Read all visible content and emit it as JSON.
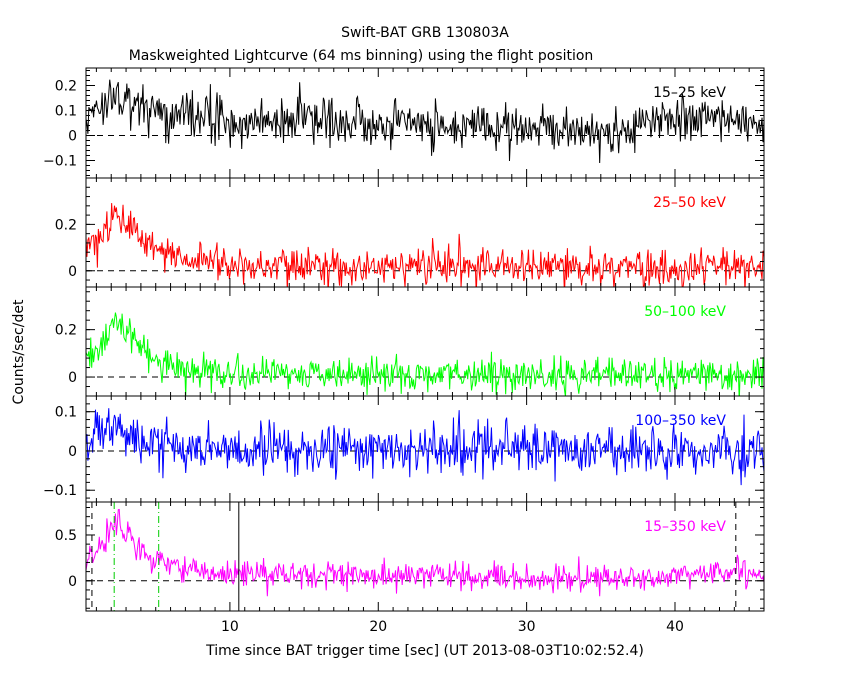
{
  "chart_data": {
    "type": "line",
    "title": "Swift-BAT GRB 130803A",
    "subtitle": "Maskweighted Lightcurve (64 ms binning) using the flight position",
    "xlabel": "Time since BAT trigger time [sec] (UT 2013-08-03T10:02:52.4)",
    "ylabel": "Counts/sec/det",
    "xlim": [
      0.3,
      46
    ],
    "xticks": [
      10,
      20,
      30,
      40
    ],
    "xtick_labels": [
      "10",
      "20",
      "30",
      "40"
    ],
    "bin_width_s": 0.064,
    "panels": [
      {
        "name": "15-25 keV",
        "label": "15–25 keV",
        "color": "#000000",
        "ylim": [
          -0.17,
          0.27
        ],
        "yticks": [
          -0.1,
          0,
          0.1,
          0.2
        ],
        "ytick_labels": [
          "−0.1",
          "0",
          "0.1",
          "0.2"
        ],
        "noise": 0.045,
        "baseline": 0.02,
        "envelope": [
          [
            0.3,
            0.06
          ],
          [
            1.5,
            0.12
          ],
          [
            2.8,
            0.13
          ],
          [
            5,
            0.07
          ],
          [
            10,
            0.04
          ],
          [
            20,
            0.03
          ],
          [
            30,
            0.01
          ],
          [
            36,
            0.0
          ],
          [
            41,
            0.05
          ],
          [
            42.5,
            0.06
          ],
          [
            46,
            0.03
          ]
        ]
      },
      {
        "name": "25-50 keV",
        "label": "25–50 keV",
        "color": "#ff0000",
        "ylim": [
          -0.07,
          0.4
        ],
        "yticks": [
          0,
          0.2
        ],
        "ytick_labels": [
          "0",
          "0.2"
        ],
        "noise": 0.04,
        "baseline": 0.0,
        "envelope": [
          [
            0.3,
            0.08
          ],
          [
            1.2,
            0.14
          ],
          [
            2.2,
            0.26
          ],
          [
            3.2,
            0.18
          ],
          [
            5,
            0.08
          ],
          [
            7,
            0.04
          ],
          [
            10,
            0.03
          ],
          [
            20,
            0.02
          ],
          [
            46,
            0.01
          ]
        ]
      },
      {
        "name": "50-100 keV",
        "label": "50–100 keV",
        "color": "#00ff00",
        "ylim": [
          -0.08,
          0.38
        ],
        "yticks": [
          0,
          0.2
        ],
        "ytick_labels": [
          "0",
          "0.2"
        ],
        "noise": 0.035,
        "baseline": 0.0,
        "envelope": [
          [
            0.3,
            0.06
          ],
          [
            1.2,
            0.12
          ],
          [
            2.3,
            0.24
          ],
          [
            3.3,
            0.17
          ],
          [
            5,
            0.06
          ],
          [
            7,
            0.03
          ],
          [
            10,
            0.02
          ],
          [
            20,
            0.01
          ],
          [
            46,
            0.01
          ]
        ]
      },
      {
        "name": "100-350 keV",
        "label": "100–350 keV",
        "color": "#0000ff",
        "ylim": [
          -0.13,
          0.14
        ],
        "yticks": [
          -0.1,
          0,
          0.1
        ],
        "ytick_labels": [
          "−0.1",
          "0",
          "0.1"
        ],
        "noise": 0.032,
        "baseline": 0.0,
        "envelope": [
          [
            0.3,
            0.02
          ],
          [
            1.5,
            0.05
          ],
          [
            2.5,
            0.07
          ],
          [
            4,
            0.03
          ],
          [
            6,
            0.01
          ],
          [
            46,
            0.0
          ]
        ]
      },
      {
        "name": "15-350 keV",
        "label": "15–350 keV",
        "color": "#ff00ff",
        "ylim": [
          -0.33,
          0.86
        ],
        "yticks": [
          0,
          0.5
        ],
        "ytick_labels": [
          "0",
          "0.5"
        ],
        "noise": 0.075,
        "baseline": 0.0,
        "envelope": [
          [
            0.3,
            0.15
          ],
          [
            1.2,
            0.35
          ],
          [
            2.4,
            0.66
          ],
          [
            3.4,
            0.45
          ],
          [
            5,
            0.22
          ],
          [
            7,
            0.12
          ],
          [
            10,
            0.08
          ],
          [
            20,
            0.06
          ],
          [
            30,
            0.03
          ],
          [
            36,
            0.02
          ],
          [
            40,
            0.07
          ],
          [
            43,
            0.1
          ],
          [
            46,
            0.08
          ]
        ]
      }
    ],
    "markers": [
      {
        "name": "t-start",
        "x": 0.7,
        "style": "dashed",
        "color": "#000000"
      },
      {
        "name": "t90-start",
        "x": 2.2,
        "style": "dashdot",
        "color": "#00cc00"
      },
      {
        "name": "t90-end",
        "x": 5.2,
        "style": "dashdot",
        "color": "#00cc00"
      },
      {
        "name": "trigger-end",
        "x": 10.6,
        "style": "solid",
        "color": "#000000"
      },
      {
        "name": "t-stop",
        "x": 44.1,
        "style": "dashed",
        "color": "#000000"
      }
    ],
    "zero_line": {
      "style": "dashed",
      "color": "#000000"
    }
  }
}
